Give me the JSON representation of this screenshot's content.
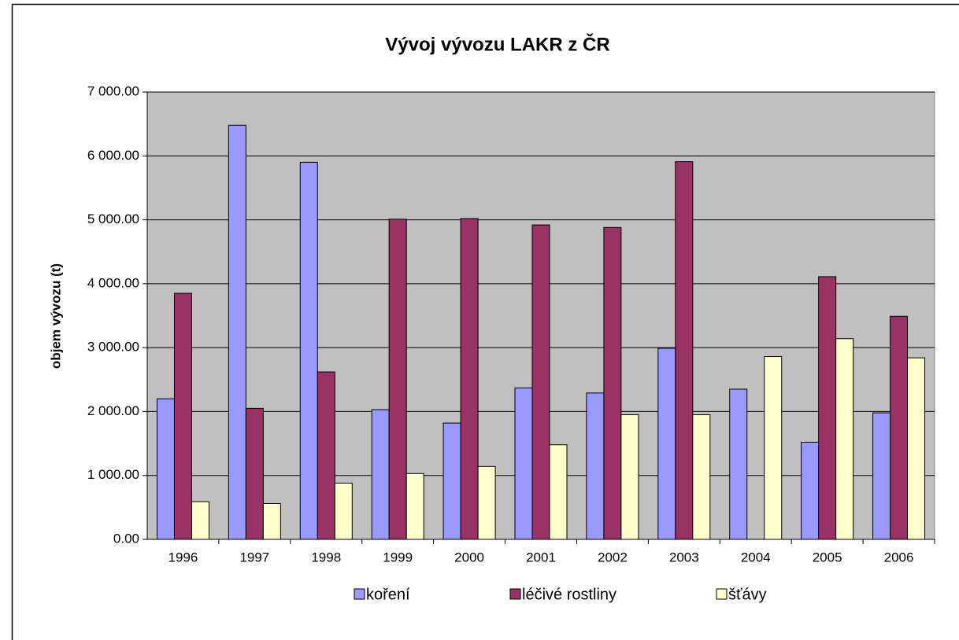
{
  "chart_data": {
    "type": "bar",
    "title": "Vývoj vývozu LAKR z ČR",
    "y_label": "objem vývozu (t)",
    "categories": [
      "1996",
      "1997",
      "1998",
      "1999",
      "2000",
      "2001",
      "2002",
      "2003",
      "2004",
      "2005",
      "2006"
    ],
    "series": [
      {
        "name": "koření",
        "color": "#9999ff",
        "values": [
          2200,
          6480,
          5900,
          2030,
          1820,
          2370,
          2290,
          2990,
          2350,
          1520,
          1980
        ]
      },
      {
        "name": "léčivé rostliny",
        "color": "#993366",
        "values": [
          3850,
          2050,
          2620,
          5010,
          5020,
          4920,
          4880,
          5910,
          null,
          4110,
          3490
        ]
      },
      {
        "name": "šťávy",
        "color": "#ffffcc",
        "values": [
          590,
          560,
          880,
          1030,
          1140,
          1480,
          1950,
          1950,
          2860,
          3140,
          2840
        ]
      }
    ],
    "ylim": [
      0,
      7000
    ],
    "yticks": [
      {
        "value": 0,
        "label": "0.00"
      },
      {
        "value": 1000,
        "label": "1 000.00"
      },
      {
        "value": 2000,
        "label": "2 000.00"
      },
      {
        "value": 3000,
        "label": "3 000.00"
      },
      {
        "value": 4000,
        "label": "4 000.00"
      },
      {
        "value": 5000,
        "label": "5 000.00"
      },
      {
        "value": 6000,
        "label": "6 000.00"
      },
      {
        "value": 7000,
        "label": "7 000.00"
      }
    ],
    "grid": true,
    "plot_background": "#c0c0c0",
    "legend": "bottom"
  }
}
